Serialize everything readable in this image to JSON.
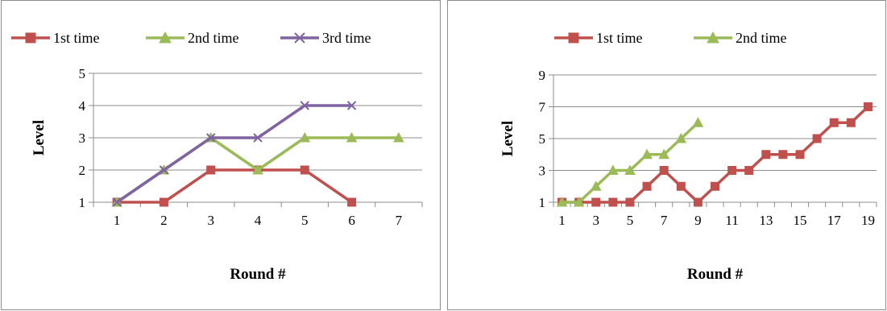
{
  "chart_data": [
    {
      "type": "line",
      "xlabel": "Round #",
      "ylabel": "Level",
      "x": [
        1,
        2,
        3,
        4,
        5,
        6,
        7
      ],
      "x_ticks": [
        "1",
        "2",
        "3",
        "4",
        "5",
        "6",
        "7"
      ],
      "y_ticks": [
        "1",
        "2",
        "3",
        "4",
        "5"
      ],
      "ylim": [
        1,
        5
      ],
      "xlim": [
        0.5,
        7.5
      ],
      "grid": true,
      "legend_position": "top",
      "series": [
        {
          "name": "1st time",
          "values": [
            1,
            1,
            2,
            2,
            2,
            1,
            null
          ],
          "color": "#c0504d",
          "marker": "square"
        },
        {
          "name": "2nd time",
          "values": [
            1,
            2,
            3,
            2,
            3,
            3,
            3
          ],
          "color": "#9bbb59",
          "marker": "triangle"
        },
        {
          "name": "3rd time",
          "values": [
            1,
            2,
            3,
            3,
            4,
            4,
            null
          ],
          "color": "#8064a2",
          "marker": "x"
        }
      ]
    },
    {
      "type": "line",
      "xlabel": "Round #",
      "ylabel": "Level",
      "x": [
        1,
        2,
        3,
        4,
        5,
        6,
        7,
        8,
        9,
        10,
        11,
        12,
        13,
        14,
        15,
        16,
        17,
        18,
        19
      ],
      "x_ticks": [
        "1",
        "3",
        "5",
        "7",
        "9",
        "11",
        "13",
        "15",
        "17",
        "19"
      ],
      "y_ticks": [
        "1",
        "3",
        "5",
        "7",
        "9"
      ],
      "ylim": [
        1,
        9
      ],
      "xlim": [
        0.5,
        19.5
      ],
      "grid": true,
      "legend_position": "top",
      "series": [
        {
          "name": "1st time",
          "values": [
            1,
            1,
            1,
            1,
            1,
            2,
            3,
            2,
            1,
            2,
            3,
            3,
            4,
            4,
            4,
            5,
            6,
            6,
            7
          ],
          "color": "#c0504d",
          "marker": "square"
        },
        {
          "name": "2nd time",
          "values": [
            1,
            1,
            2,
            3,
            3,
            4,
            4,
            5,
            6,
            null,
            null,
            null,
            null,
            null,
            null,
            null,
            null,
            null,
            null
          ],
          "color": "#9bbb59",
          "marker": "triangle"
        }
      ]
    }
  ]
}
